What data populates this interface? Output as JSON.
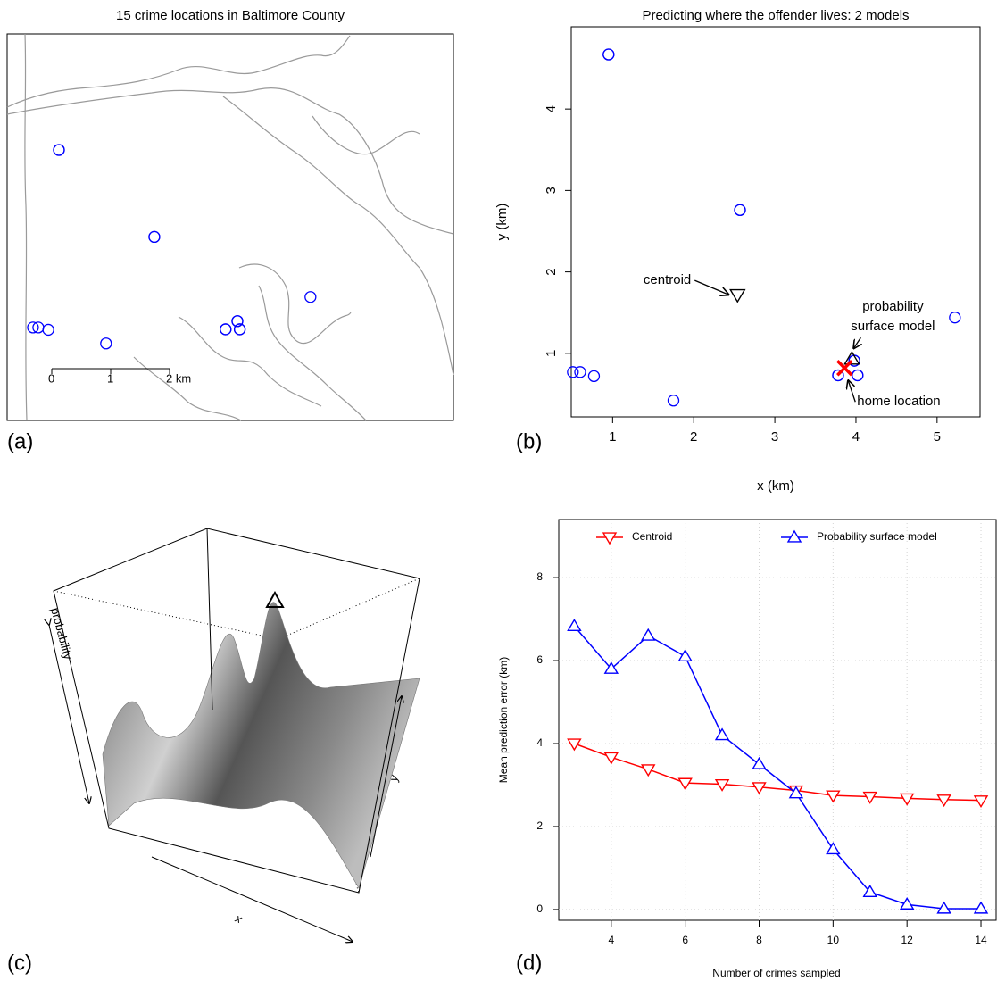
{
  "chart_data": [
    {
      "type": "map",
      "title": "15 crime locations in Baltimore County",
      "panel_label": "(a)",
      "scale_ticks": [
        0,
        1,
        {
          "value": 2,
          "label": "2 km"
        }
      ],
      "color": "#0000ff"
    },
    {
      "type": "scatter",
      "title": "Predicting where the offender lives: 2 models",
      "panel_label": "(b)",
      "xlabel": "x (km)",
      "ylabel": "y (km)",
      "xlim": [
        0.49,
        5.53
      ],
      "ylim": [
        0.22,
        5.01
      ],
      "xticks": [
        1,
        2,
        3,
        4,
        5
      ],
      "yticks": [
        1,
        2,
        3,
        4
      ],
      "series": [
        {
          "color": "#0000ff",
          "x": [
            0.51,
            0.6,
            0.77,
            0.95,
            0.95,
            1.75,
            2.57,
            3.78,
            3.78,
            3.98,
            3.98,
            4.02,
            4.02,
            5.22,
            2.57
          ],
          "values": [
            0.77,
            0.77,
            0.72,
            4.67,
            4.67,
            0.42,
            2.76,
            0.73,
            0.73,
            0.91,
            0.91,
            0.73,
            0.73,
            1.44,
            2.76
          ]
        }
      ],
      "annotations": [
        {
          "text": [
            "centroid"
          ],
          "x": 2.54,
          "y": 1.72,
          "marker": "down-triangle",
          "color": "#000000"
        },
        {
          "text": [
            "probability",
            "surface model"
          ],
          "x": 3.95,
          "y": 0.93,
          "marker": "up-triangle",
          "color": "#000000"
        },
        {
          "text": [
            "home location"
          ],
          "x": 3.86,
          "y": 0.82,
          "marker": "cross",
          "color": "#ff0000"
        }
      ]
    },
    {
      "type": "surface",
      "panel_label": "(c)",
      "xlabel": "x",
      "ylabel": "y",
      "zlabel": "probability"
    },
    {
      "type": "line",
      "panel_label": "(d)",
      "xlabel": "Number of crimes sampled",
      "ylabel": "Mean prediction error (km)",
      "xlim": [
        2.58,
        14.41
      ],
      "ylim": [
        -0.26,
        9.4
      ],
      "xticks": [
        4,
        6,
        8,
        10,
        12,
        14
      ],
      "yticks": [
        0,
        2,
        4,
        6,
        8
      ],
      "grid": true,
      "legend": "top",
      "x": [
        3,
        4,
        5,
        6,
        7,
        8,
        9,
        10,
        11,
        12,
        13,
        14
      ],
      "series": [
        {
          "name": "Centroid",
          "color": "#ff0000",
          "marker": "down-triangle",
          "values": [
            4.0,
            3.67,
            3.38,
            3.05,
            3.02,
            2.95,
            2.87,
            2.75,
            2.72,
            2.68,
            2.65,
            2.63
          ]
        },
        {
          "name": "Probability surface model",
          "color": "#0000ff",
          "marker": "up-triangle",
          "values": [
            6.83,
            5.8,
            6.6,
            6.1,
            4.2,
            3.5,
            2.8,
            1.45,
            0.42,
            0.12,
            0.02,
            0.02
          ]
        }
      ]
    }
  ]
}
